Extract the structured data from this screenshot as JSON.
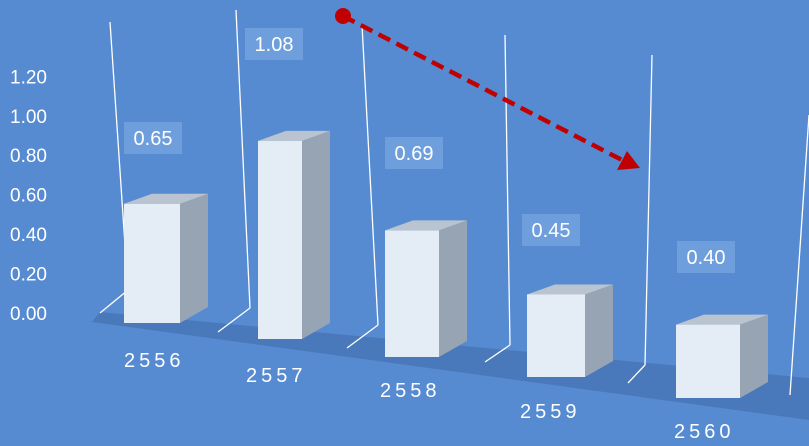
{
  "chart_data": {
    "type": "bar",
    "categories": [
      "2556",
      "2557",
      "2558",
      "2559",
      "2560"
    ],
    "values": [
      0.65,
      1.08,
      0.69,
      0.45,
      0.4
    ],
    "data_labels": [
      "0.65",
      "1.08",
      "0.69",
      "0.45",
      "0.40"
    ],
    "y_ticks": [
      "0.00",
      "0.20",
      "0.40",
      "0.60",
      "0.80",
      "1.00",
      "1.20"
    ],
    "ylim": [
      0,
      1.2
    ],
    "grid": true,
    "legend": "none",
    "style": "3d-perspective",
    "annotation": "decreasing-trend-arrow"
  },
  "colors": {
    "background": "#568bd1",
    "bar_front": "#e4ecf6",
    "bar_side": "#97a4b3",
    "bar_top": "#b9c4d0",
    "floor": "#4a79bb",
    "label_box": "#6e9fdc",
    "grid": "#ffffff",
    "arrow": "#c00000"
  }
}
